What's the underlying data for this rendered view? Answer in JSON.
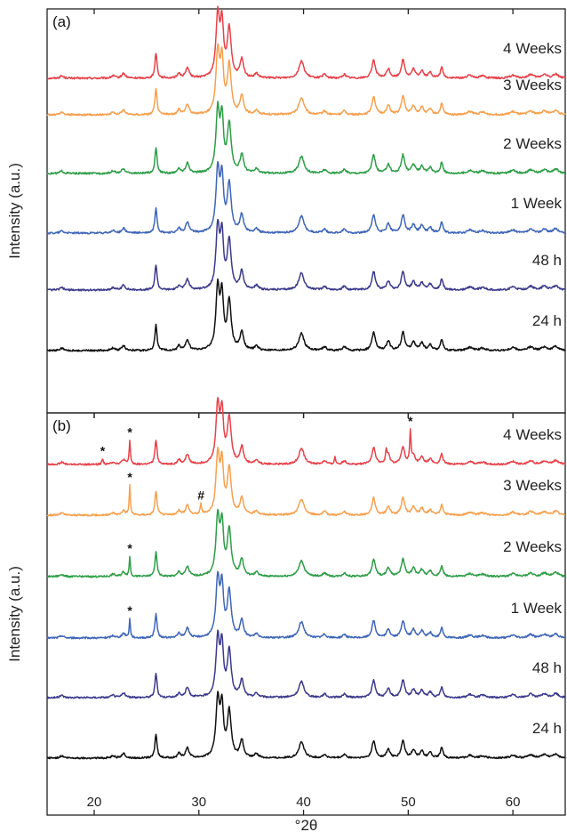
{
  "chart_data": {
    "type": "line",
    "xlabel": "°2θ",
    "xlim": [
      15.5,
      65
    ],
    "x_ticks": [
      20,
      30,
      40,
      50,
      60
    ],
    "grid": false,
    "peaks": [
      {
        "x": 25.9,
        "h": 0.42,
        "w": 0.12
      },
      {
        "x": 28.1,
        "h": 0.08,
        "w": 0.15
      },
      {
        "x": 28.9,
        "h": 0.17,
        "w": 0.2
      },
      {
        "x": 31.8,
        "h": 1.0,
        "w": 0.2
      },
      {
        "x": 32.2,
        "h": 0.85,
        "w": 0.18
      },
      {
        "x": 32.9,
        "h": 0.8,
        "w": 0.22
      },
      {
        "x": 34.1,
        "h": 0.3,
        "w": 0.2
      },
      {
        "x": 35.5,
        "h": 0.07,
        "w": 0.2
      },
      {
        "x": 39.8,
        "h": 0.28,
        "w": 0.3
      },
      {
        "x": 42.0,
        "h": 0.06,
        "w": 0.2
      },
      {
        "x": 43.9,
        "h": 0.06,
        "w": 0.2
      },
      {
        "x": 46.7,
        "h": 0.3,
        "w": 0.2
      },
      {
        "x": 48.1,
        "h": 0.15,
        "w": 0.2
      },
      {
        "x": 49.5,
        "h": 0.3,
        "w": 0.2
      },
      {
        "x": 50.5,
        "h": 0.14,
        "w": 0.2
      },
      {
        "x": 51.3,
        "h": 0.12,
        "w": 0.2
      },
      {
        "x": 52.1,
        "h": 0.09,
        "w": 0.2
      },
      {
        "x": 53.2,
        "h": 0.18,
        "w": 0.15
      },
      {
        "x": 55.9,
        "h": 0.05,
        "w": 0.3
      },
      {
        "x": 57.1,
        "h": 0.04,
        "w": 0.3
      },
      {
        "x": 60.0,
        "h": 0.05,
        "w": 0.3
      },
      {
        "x": 61.7,
        "h": 0.06,
        "w": 0.3
      },
      {
        "x": 63.0,
        "h": 0.06,
        "w": 0.3
      },
      {
        "x": 64.1,
        "h": 0.07,
        "w": 0.3
      },
      {
        "x": 22.8,
        "h": 0.08,
        "w": 0.2
      },
      {
        "x": 21.8,
        "h": 0.04,
        "w": 0.2
      },
      {
        "x": 16.9,
        "h": 0.04,
        "w": 0.2
      }
    ],
    "panels": [
      {
        "label": "(a)",
        "ylabel": "Intensity (a.u.)",
        "series": [
          {
            "name": "4 Weeks",
            "color": "#e8424a",
            "extra_peaks": []
          },
          {
            "name": "3 Weeks",
            "color": "#f7a04e",
            "extra_peaks": []
          },
          {
            "name": "2 Weeks",
            "color": "#2e9e47",
            "extra_peaks": []
          },
          {
            "name": "1 Week",
            "color": "#3f66b8",
            "extra_peaks": []
          },
          {
            "name": "48 h",
            "color": "#3c3a8c",
            "extra_peaks": []
          },
          {
            "name": "24 h",
            "color": "#111111",
            "extra_peaks": []
          }
        ],
        "markers": []
      },
      {
        "label": "(b)",
        "ylabel": "Intensity (a.u.)",
        "series": [
          {
            "name": "4 Weeks",
            "color": "#e8424a",
            "extra_peaks": [
              {
                "x": 20.8,
                "h": 0.1,
                "w": 0.08
              },
              {
                "x": 23.4,
                "h": 0.42,
                "w": 0.07
              },
              {
                "x": 43.0,
                "h": 0.12,
                "w": 0.08
              },
              {
                "x": 47.9,
                "h": 0.2,
                "w": 0.08
              },
              {
                "x": 50.2,
                "h": 0.55,
                "w": 0.07
              }
            ]
          },
          {
            "name": "3 Weeks",
            "color": "#f7a04e",
            "extra_peaks": [
              {
                "x": 23.4,
                "h": 0.52,
                "w": 0.07
              },
              {
                "x": 30.2,
                "h": 0.18,
                "w": 0.08
              }
            ]
          },
          {
            "name": "2 Weeks",
            "color": "#2e9e47",
            "extra_peaks": [
              {
                "x": 23.4,
                "h": 0.35,
                "w": 0.07
              }
            ]
          },
          {
            "name": "1 Week",
            "color": "#3f66b8",
            "extra_peaks": [
              {
                "x": 23.4,
                "h": 0.33,
                "w": 0.07
              }
            ]
          },
          {
            "name": "48 h",
            "color": "#3c3a8c",
            "extra_peaks": []
          },
          {
            "name": "24 h",
            "color": "#111111",
            "extra_peaks": []
          }
        ],
        "markers": [
          {
            "symbol": "*",
            "x": 20.8,
            "series": "4 Weeks",
            "rise": 0.1
          },
          {
            "symbol": "*",
            "x": 23.4,
            "series": "4 Weeks",
            "rise": 0.42
          },
          {
            "symbol": "*",
            "x": 50.2,
            "series": "4 Weeks",
            "rise": 0.55
          },
          {
            "symbol": "*",
            "x": 23.4,
            "series": "3 Weeks",
            "rise": 0.52
          },
          {
            "symbol": "#",
            "x": 30.2,
            "series": "3 Weeks",
            "rise": 0.18
          },
          {
            "symbol": "*",
            "x": 23.4,
            "series": "2 Weeks",
            "rise": 0.35
          },
          {
            "symbol": "*",
            "x": 23.4,
            "series": "1 Week",
            "rise": 0.33
          }
        ]
      }
    ]
  }
}
